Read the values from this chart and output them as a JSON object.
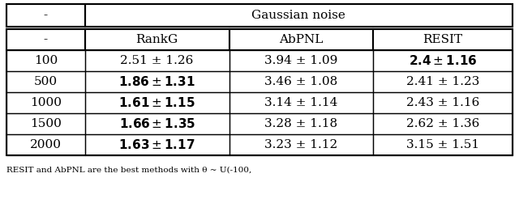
{
  "title_row_left": "-",
  "title_row_right": "Gaussian noise",
  "header_row": [
    "-",
    "RankG",
    "AbPNL",
    "RESIT"
  ],
  "rows": [
    {
      "n": "100",
      "rankG": "2.51 ± 1.26",
      "abpnl": "3.94 ± 1.09",
      "resit": "2.4 ± 1.16",
      "bold": {
        "rankG": false,
        "abpnl": false,
        "resit": true
      }
    },
    {
      "n": "500",
      "rankG": "1.86 ± 1.31",
      "abpnl": "3.46 ± 1.08",
      "resit": "2.41 ± 1.23",
      "bold": {
        "rankG": true,
        "abpnl": false,
        "resit": false
      }
    },
    {
      "n": "1000",
      "rankG": "1.61 ± 1.15",
      "abpnl": "3.14 ± 1.14",
      "resit": "2.43 ± 1.16",
      "bold": {
        "rankG": true,
        "abpnl": false,
        "resit": false
      }
    },
    {
      "n": "1500",
      "rankG": "1.66 ± 1.35",
      "abpnl": "3.28 ± 1.18",
      "resit": "2.62 ± 1.36",
      "bold": {
        "rankG": true,
        "abpnl": false,
        "resit": false
      }
    },
    {
      "n": "2000",
      "rankG": "1.63 ± 1.17",
      "abpnl": "3.23 ± 1.12",
      "resit": "3.15 ± 1.51",
      "bold": {
        "rankG": true,
        "abpnl": false,
        "resit": false
      }
    }
  ],
  "background": "#ffffff",
  "font_size": 11.0,
  "caption_font_size": 7.5,
  "caption": "RESIT and AbPNL are the best methods with θ ~ U(-100,"
}
